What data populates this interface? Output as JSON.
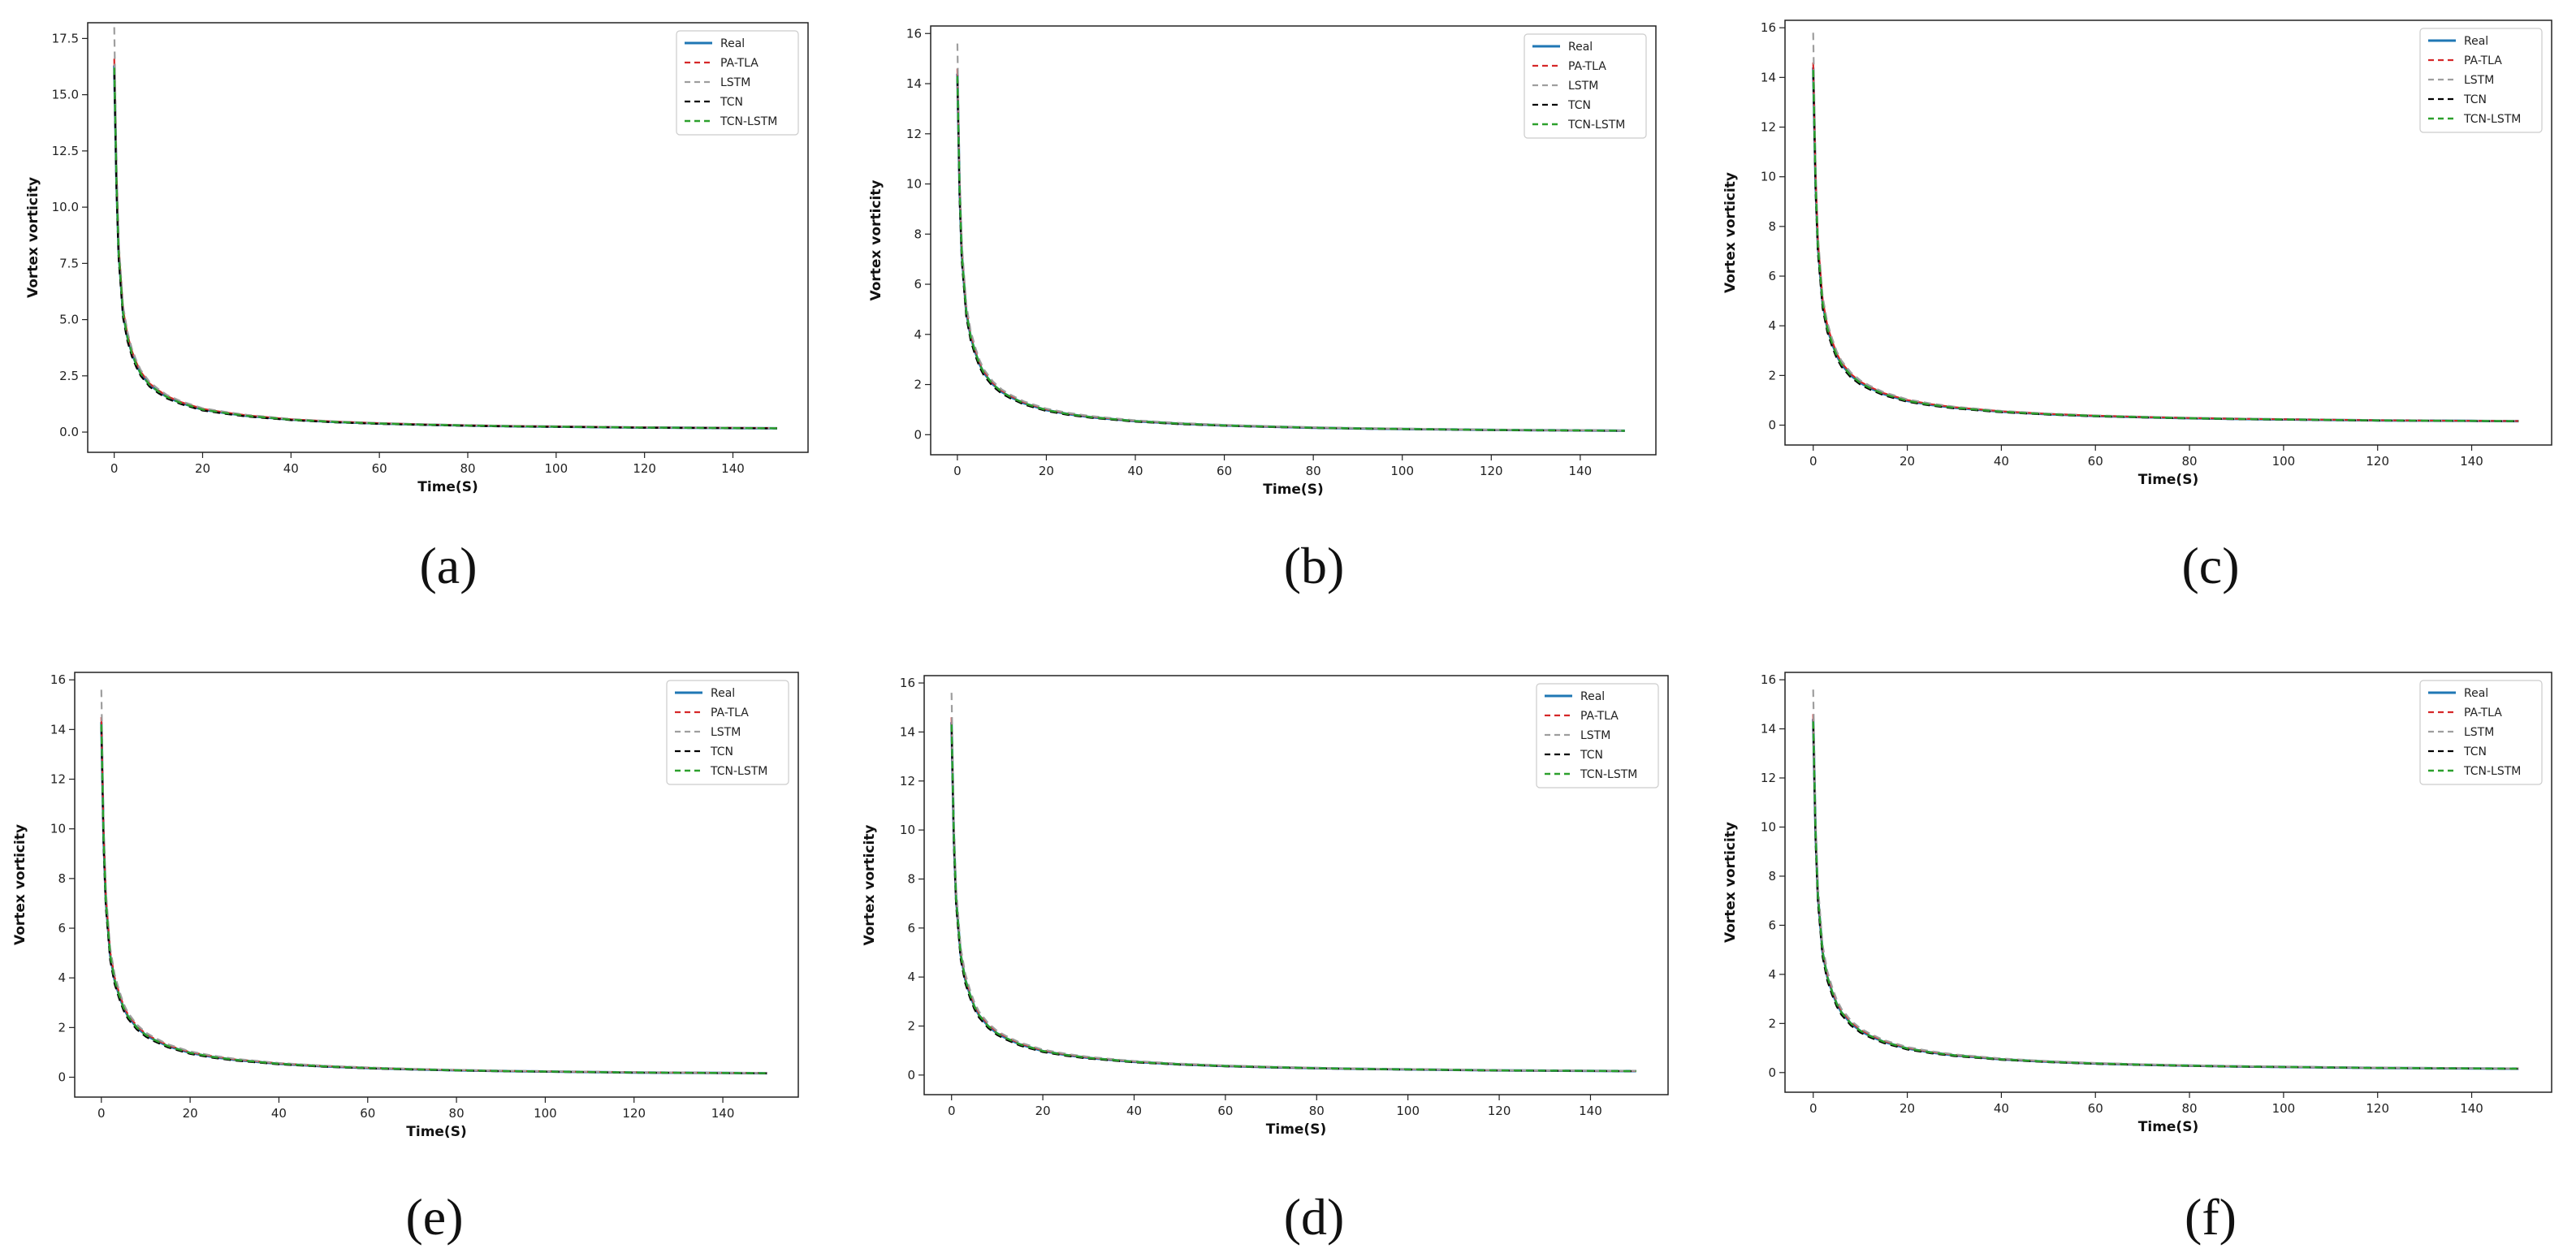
{
  "colors": {
    "Real": "#1f77b4",
    "PA-TLA": "#d62728",
    "LSTM": "#9e9e9e",
    "TCN": "#000000",
    "TCN-LSTM": "#2ca02c"
  },
  "chart_data": [
    {
      "type": "line",
      "caption": "(a)",
      "xlabel": "Time(S)",
      "ylabel": "Vortex vorticity",
      "xlim": [
        -6,
        157
      ],
      "ylim": [
        -0.9,
        18.2
      ],
      "xticks": [
        "0",
        "20",
        "40",
        "60",
        "80",
        "100",
        "120",
        "140"
      ],
      "yticks": [
        "0.0",
        "2.5",
        "5.0",
        "7.5",
        "10.0",
        "12.5",
        "15.0",
        "17.5"
      ],
      "legend": [
        "Real",
        "PA-TLA",
        "LSTM",
        "TCN",
        "TCN-LSTM"
      ],
      "legend_loc": "upper right",
      "grid": false,
      "x": [
        0,
        0.5,
        1,
        2,
        3,
        4,
        5,
        6,
        8,
        10,
        12,
        15,
        20,
        25,
        30,
        40,
        50,
        60,
        70,
        80,
        90,
        100,
        110,
        120,
        130,
        140,
        150
      ],
      "peaks": {
        "Real": 16.3,
        "PA-TLA": 16.6,
        "LSTM": 18.0,
        "TCN": 16.0,
        "TCN-LSTM": 16.2
      },
      "series": [
        {
          "name": "Real",
          "values": [
            16.3,
            11.2,
            8.0,
            5.3,
            4.2,
            3.5,
            3.0,
            2.6,
            2.1,
            1.8,
            1.55,
            1.3,
            1.0,
            0.85,
            0.72,
            0.55,
            0.45,
            0.38,
            0.33,
            0.29,
            0.26,
            0.24,
            0.22,
            0.2,
            0.19,
            0.18,
            0.17
          ]
        }
      ]
    },
    {
      "type": "line",
      "caption": "(b)",
      "xlabel": "Time(S)",
      "ylabel": "Vortex vorticity",
      "xlim": [
        -6,
        157
      ],
      "ylim": [
        -0.8,
        16.3
      ],
      "xticks": [
        "0",
        "20",
        "40",
        "60",
        "80",
        "100",
        "120",
        "140"
      ],
      "yticks": [
        "0",
        "2",
        "4",
        "6",
        "8",
        "10",
        "12",
        "14",
        "16"
      ],
      "legend": [
        "Real",
        "PA-TLA",
        "LSTM",
        "TCN",
        "TCN-LSTM"
      ],
      "legend_loc": "upper right",
      "grid": false,
      "x": [
        0,
        0.5,
        1,
        2,
        3,
        4,
        5,
        6,
        8,
        10,
        12,
        15,
        20,
        25,
        30,
        40,
        50,
        60,
        70,
        80,
        90,
        100,
        110,
        120,
        130,
        140,
        150
      ],
      "peaks": {
        "Real": 14.4,
        "PA-TLA": 14.6,
        "LSTM": 15.6,
        "TCN": 14.2,
        "TCN-LSTM": 14.3
      },
      "series": [
        {
          "name": "Real",
          "values": [
            14.4,
            9.8,
            7.2,
            4.9,
            3.9,
            3.3,
            2.8,
            2.45,
            2.0,
            1.7,
            1.5,
            1.25,
            0.98,
            0.82,
            0.7,
            0.54,
            0.44,
            0.37,
            0.32,
            0.28,
            0.25,
            0.23,
            0.21,
            0.19,
            0.18,
            0.17,
            0.16
          ]
        }
      ]
    },
    {
      "type": "line",
      "caption": "(c)",
      "xlabel": "Time(S)",
      "ylabel": "Vortex vorticity",
      "xlim": [
        -6,
        157
      ],
      "ylim": [
        -0.8,
        16.3
      ],
      "xticks": [
        "0",
        "20",
        "40",
        "60",
        "80",
        "100",
        "120",
        "140"
      ],
      "yticks": [
        "0",
        "2",
        "4",
        "6",
        "8",
        "10",
        "12",
        "14",
        "16"
      ],
      "legend": [
        "Real",
        "PA-TLA",
        "LSTM",
        "TCN",
        "TCN-LSTM"
      ],
      "legend_loc": "upper right",
      "grid": false,
      "x": [
        0,
        0.5,
        1,
        2,
        3,
        4,
        5,
        6,
        8,
        10,
        12,
        15,
        20,
        25,
        30,
        40,
        50,
        60,
        70,
        80,
        90,
        100,
        110,
        120,
        130,
        140,
        150
      ],
      "peaks": {
        "Real": 14.4,
        "PA-TLA": 14.6,
        "LSTM": 15.8,
        "TCN": 14.2,
        "TCN-LSTM": 14.3
      },
      "series": [
        {
          "name": "Real",
          "values": [
            14.4,
            9.8,
            7.2,
            4.9,
            3.9,
            3.3,
            2.8,
            2.45,
            2.0,
            1.7,
            1.5,
            1.25,
            0.98,
            0.82,
            0.7,
            0.54,
            0.44,
            0.37,
            0.32,
            0.28,
            0.25,
            0.23,
            0.21,
            0.19,
            0.18,
            0.17,
            0.16
          ]
        }
      ]
    },
    {
      "type": "line",
      "caption": "(e)",
      "xlabel": "Time(S)",
      "ylabel": "Vortex vorticity",
      "xlim": [
        -6,
        157
      ],
      "ylim": [
        -0.8,
        16.3
      ],
      "xticks": [
        "0",
        "20",
        "40",
        "60",
        "80",
        "100",
        "120",
        "140"
      ],
      "yticks": [
        "0",
        "2",
        "4",
        "6",
        "8",
        "10",
        "12",
        "14",
        "16"
      ],
      "legend": [
        "Real",
        "PA-TLA",
        "LSTM",
        "TCN",
        "TCN-LSTM"
      ],
      "legend_loc": "upper right",
      "grid": false,
      "x": [
        0,
        0.5,
        1,
        2,
        3,
        4,
        5,
        6,
        8,
        10,
        12,
        15,
        20,
        25,
        30,
        40,
        50,
        60,
        70,
        80,
        90,
        100,
        110,
        120,
        130,
        140,
        150
      ],
      "peaks": {
        "Real": 14.3,
        "PA-TLA": 14.5,
        "LSTM": 15.6,
        "TCN": 14.1,
        "TCN-LSTM": 14.2
      },
      "series": [
        {
          "name": "Real",
          "values": [
            14.3,
            9.7,
            7.1,
            4.9,
            3.9,
            3.3,
            2.8,
            2.45,
            2.0,
            1.7,
            1.5,
            1.25,
            0.98,
            0.82,
            0.7,
            0.54,
            0.44,
            0.37,
            0.32,
            0.28,
            0.25,
            0.23,
            0.21,
            0.19,
            0.18,
            0.17,
            0.16
          ]
        }
      ]
    },
    {
      "type": "line",
      "caption": "(d)",
      "xlabel": "Time(S)",
      "ylabel": "Vortex vorticity",
      "xlim": [
        -6,
        157
      ],
      "ylim": [
        -0.8,
        16.3
      ],
      "xticks": [
        "0",
        "20",
        "40",
        "60",
        "80",
        "100",
        "120",
        "140"
      ],
      "yticks": [
        "0",
        "2",
        "4",
        "6",
        "8",
        "10",
        "12",
        "14",
        "16"
      ],
      "legend": [
        "Real",
        "PA-TLA",
        "LSTM",
        "TCN",
        "TCN-LSTM"
      ],
      "legend_loc": "upper right",
      "grid": false,
      "x": [
        0,
        0.5,
        1,
        2,
        3,
        4,
        5,
        6,
        8,
        10,
        12,
        15,
        20,
        25,
        30,
        40,
        50,
        60,
        70,
        80,
        90,
        100,
        110,
        120,
        130,
        140,
        150
      ],
      "peaks": {
        "Real": 14.4,
        "PA-TLA": 14.6,
        "LSTM": 15.6,
        "TCN": 14.2,
        "TCN-LSTM": 14.3
      },
      "series": [
        {
          "name": "Real",
          "values": [
            14.4,
            9.8,
            7.2,
            4.9,
            3.9,
            3.3,
            2.8,
            2.45,
            2.0,
            1.7,
            1.5,
            1.25,
            0.98,
            0.82,
            0.7,
            0.54,
            0.44,
            0.37,
            0.32,
            0.28,
            0.25,
            0.23,
            0.21,
            0.19,
            0.18,
            0.17,
            0.16
          ]
        }
      ]
    },
    {
      "type": "line",
      "caption": "(f)",
      "xlabel": "Time(S)",
      "ylabel": "Vortex vorticity",
      "xlim": [
        -6,
        157
      ],
      "ylim": [
        -0.8,
        16.3
      ],
      "xticks": [
        "0",
        "20",
        "40",
        "60",
        "80",
        "100",
        "120",
        "140"
      ],
      "yticks": [
        "0",
        "2",
        "4",
        "6",
        "8",
        "10",
        "12",
        "14",
        "16"
      ],
      "legend": [
        "Real",
        "PA-TLA",
        "LSTM",
        "TCN",
        "TCN-LSTM"
      ],
      "legend_loc": "upper right",
      "grid": false,
      "x": [
        0,
        0.5,
        1,
        2,
        3,
        4,
        5,
        6,
        8,
        10,
        12,
        15,
        20,
        25,
        30,
        40,
        50,
        60,
        70,
        80,
        90,
        100,
        110,
        120,
        130,
        140,
        150
      ],
      "peaks": {
        "Real": 14.4,
        "PA-TLA": 14.6,
        "LSTM": 15.6,
        "TCN": 14.2,
        "TCN-LSTM": 14.3
      },
      "series": [
        {
          "name": "Real",
          "values": [
            14.4,
            9.8,
            7.2,
            4.9,
            3.9,
            3.3,
            2.8,
            2.45,
            2.0,
            1.7,
            1.5,
            1.25,
            0.98,
            0.82,
            0.7,
            0.54,
            0.44,
            0.37,
            0.32,
            0.28,
            0.25,
            0.23,
            0.21,
            0.19,
            0.18,
            0.17,
            0.16
          ]
        }
      ]
    }
  ]
}
